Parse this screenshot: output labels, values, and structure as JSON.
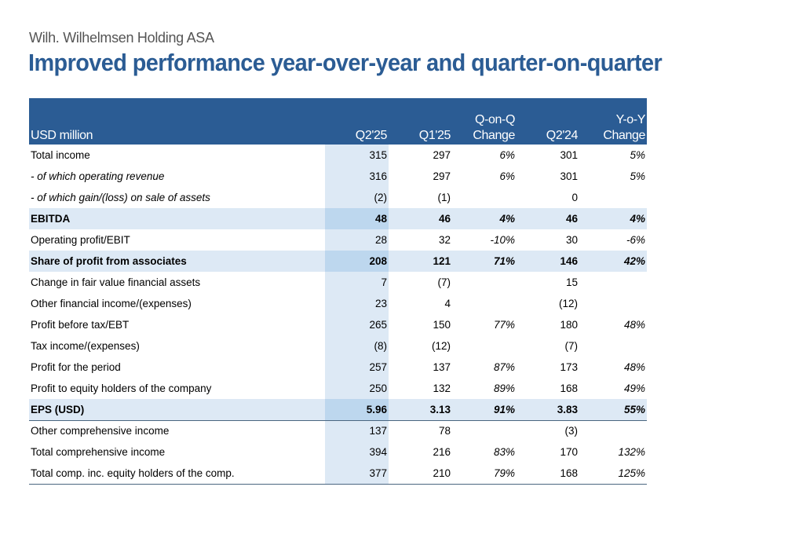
{
  "header": {
    "subtitle": "Wilh. Wilhelmsen Holding ASA",
    "title": "Improved performance year-over-year and quarter-on-quarter"
  },
  "table": {
    "columns": {
      "label": "USD million",
      "q2_25": "Q2'25",
      "q1_25": "Q1'25",
      "qoq_line1": "Q-on-Q",
      "qoq_line2": "Change",
      "q2_24": "Q2'24",
      "yoy_line1": "Y-o-Y",
      "yoy_line2": "Change"
    },
    "rows": [
      {
        "label": "Total income",
        "q2_25": "315",
        "q1_25": "297",
        "qoq": "6%",
        "q2_24": "301",
        "yoy": "5%"
      },
      {
        "label": "- of which operating revenue",
        "q2_25": "316",
        "q1_25": "297",
        "qoq": "6%",
        "q2_24": "301",
        "yoy": "5%"
      },
      {
        "label": "- of which gain/(loss) on sale of assets",
        "q2_25": "(2)",
        "q1_25": "(1)",
        "qoq": "",
        "q2_24": "0",
        "yoy": ""
      },
      {
        "label": "EBITDA",
        "q2_25": "48",
        "q1_25": "46",
        "qoq": "4%",
        "q2_24": "46",
        "yoy": "4%"
      },
      {
        "label": "Operating profit/EBIT",
        "q2_25": "28",
        "q1_25": "32",
        "qoq": "-10%",
        "q2_24": "30",
        "yoy": "-6%"
      },
      {
        "label": "Share of profit from associates",
        "q2_25": "208",
        "q1_25": "121",
        "qoq": "71%",
        "q2_24": "146",
        "yoy": "42%"
      },
      {
        "label": "Change in fair value financial assets",
        "q2_25": "7",
        "q1_25": "(7)",
        "qoq": "",
        "q2_24": "15",
        "yoy": ""
      },
      {
        "label": "Other financial income/(expenses)",
        "q2_25": "23",
        "q1_25": "4",
        "qoq": "",
        "q2_24": "(12)",
        "yoy": ""
      },
      {
        "label": "Profit before tax/EBT",
        "q2_25": "265",
        "q1_25": "150",
        "qoq": "77%",
        "q2_24": "180",
        "yoy": "48%"
      },
      {
        "label": "Tax income/(expenses)",
        "q2_25": "(8)",
        "q1_25": "(12)",
        "qoq": "",
        "q2_24": "(7)",
        "yoy": ""
      },
      {
        "label": "Profit for the period",
        "q2_25": "257",
        "q1_25": "137",
        "qoq": "87%",
        "q2_24": "173",
        "yoy": "48%"
      },
      {
        "label": "Profit to equity holders of the company",
        "q2_25": "250",
        "q1_25": "132",
        "qoq": "89%",
        "q2_24": "168",
        "yoy": "49%"
      },
      {
        "label": "EPS (USD)",
        "q2_25": "5.96",
        "q1_25": "3.13",
        "qoq": "91%",
        "q2_24": "3.83",
        "yoy": "55%"
      },
      {
        "label": "Other comprehensive income",
        "q2_25": "137",
        "q1_25": "78",
        "qoq": "",
        "q2_24": "(3)",
        "yoy": ""
      },
      {
        "label": "Total comprehensive income",
        "q2_25": "394",
        "q1_25": "216",
        "qoq": "83%",
        "q2_24": "170",
        "yoy": "132%"
      },
      {
        "label": "Total comp. inc. equity holders of the comp.",
        "q2_25": "377",
        "q1_25": "210",
        "qoq": "79%",
        "q2_24": "168",
        "yoy": "125%"
      }
    ]
  },
  "colors": {
    "title": "#2B5C94",
    "header_bg": "#2B5C94",
    "highlight_row": "#DDE9F5",
    "highlight_q2_cell": "#BDD7EE"
  }
}
